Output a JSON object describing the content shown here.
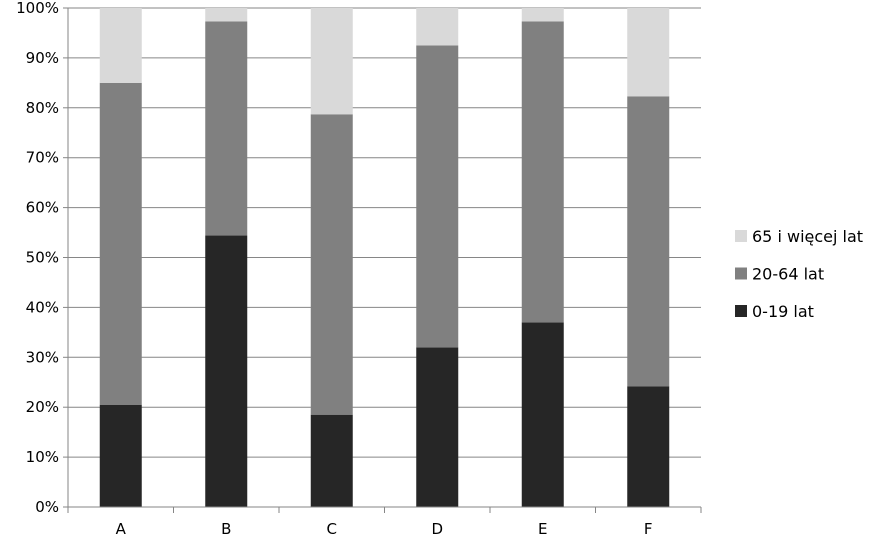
{
  "chart_data": {
    "type": "bar",
    "stacked": true,
    "categories": [
      "A",
      "B",
      "C",
      "D",
      "E",
      "F"
    ],
    "series": [
      {
        "name": "0-19 lat",
        "color": "#262626",
        "values": [
          20.5,
          54.4,
          18.5,
          32.0,
          37.0,
          24.2
        ]
      },
      {
        "name": "20-64 lat",
        "color": "#808080",
        "values": [
          64.5,
          42.9,
          60.2,
          60.5,
          60.3,
          58.1
        ]
      },
      {
        "name": "65 i więcej lat",
        "color": "#d9d9d9",
        "values": [
          15.0,
          2.7,
          21.3,
          7.5,
          2.7,
          17.7
        ]
      }
    ],
    "yticks": [
      "0%",
      "10%",
      "20%",
      "30%",
      "40%",
      "50%",
      "60%",
      "70%",
      "80%",
      "90%",
      "100%"
    ],
    "ylim": [
      0,
      100
    ],
    "legend_order": [
      "65 i więcej lat",
      "20-64 lat",
      "0-19 lat"
    ],
    "legend_position": "right",
    "grid": true
  }
}
